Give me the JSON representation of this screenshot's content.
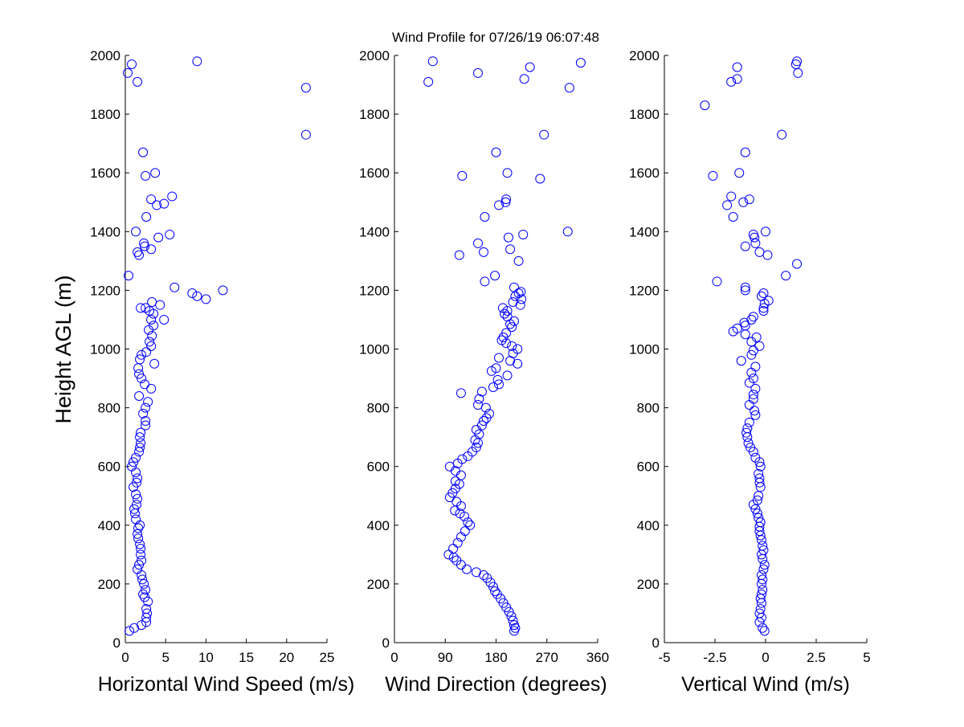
{
  "figure": {
    "title": "Wind Profile for  07/26/19 06:07:48",
    "ylabel": "Height AGL (m)",
    "marker_color": "#0000ff"
  },
  "chart_data": [
    {
      "type": "scatter",
      "xlabel": "Horizontal Wind Speed (m/s)",
      "ylabel": "Height AGL (m)",
      "xlim": [
        0,
        25
      ],
      "ylim": [
        0,
        2000
      ],
      "xticks": [
        "0",
        "5",
        "10",
        "15",
        "20",
        "25"
      ],
      "yticks": [
        "0",
        "200",
        "400",
        "600",
        "800",
        "1000",
        "1200",
        "1400",
        "1600",
        "1800",
        "2000"
      ],
      "points": [
        [
          0.5,
          40
        ],
        [
          1.1,
          50
        ],
        [
          2.0,
          60
        ],
        [
          2.6,
          70
        ],
        [
          2.6,
          85
        ],
        [
          2.7,
          100
        ],
        [
          2.6,
          115
        ],
        [
          2.8,
          140
        ],
        [
          2.4,
          155
        ],
        [
          2.2,
          165
        ],
        [
          2.5,
          180
        ],
        [
          2.3,
          200
        ],
        [
          2.1,
          215
        ],
        [
          2.0,
          230
        ],
        [
          1.5,
          250
        ],
        [
          1.7,
          265
        ],
        [
          2.0,
          280
        ],
        [
          1.9,
          300
        ],
        [
          1.9,
          320
        ],
        [
          1.8,
          335
        ],
        [
          1.6,
          355
        ],
        [
          1.5,
          370
        ],
        [
          1.6,
          390
        ],
        [
          1.8,
          400
        ],
        [
          1.3,
          420
        ],
        [
          1.2,
          440
        ],
        [
          1.1,
          455
        ],
        [
          1.4,
          470
        ],
        [
          1.5,
          490
        ],
        [
          1.3,
          505
        ],
        [
          1.0,
          530
        ],
        [
          1.4,
          545
        ],
        [
          1.5,
          560
        ],
        [
          1.3,
          580
        ],
        [
          0.8,
          600
        ],
        [
          1.0,
          615
        ],
        [
          1.3,
          630
        ],
        [
          1.7,
          650
        ],
        [
          1.8,
          665
        ],
        [
          1.9,
          680
        ],
        [
          1.8,
          700
        ],
        [
          1.9,
          715
        ],
        [
          2.5,
          740
        ],
        [
          2.5,
          755
        ],
        [
          2.2,
          780
        ],
        [
          2.5,
          800
        ],
        [
          2.8,
          820
        ],
        [
          1.7,
          840
        ],
        [
          3.2,
          865
        ],
        [
          2.4,
          880
        ],
        [
          2.0,
          900
        ],
        [
          1.7,
          915
        ],
        [
          1.6,
          935
        ],
        [
          3.6,
          950
        ],
        [
          1.8,
          965
        ],
        [
          2.0,
          980
        ],
        [
          2.6,
          990
        ],
        [
          3.2,
          1010
        ],
        [
          3.0,
          1025
        ],
        [
          3.3,
          1045
        ],
        [
          2.9,
          1065
        ],
        [
          3.5,
          1080
        ],
        [
          3.2,
          1100
        ],
        [
          4.8,
          1100
        ],
        [
          3.5,
          1120
        ],
        [
          3.0,
          1130
        ],
        [
          2.5,
          1140
        ],
        [
          1.9,
          1140
        ],
        [
          4.3,
          1150
        ],
        [
          3.3,
          1160
        ],
        [
          8.3,
          1190
        ],
        [
          8.9,
          1180
        ],
        [
          10.0,
          1170
        ],
        [
          12.1,
          1200
        ],
        [
          6.1,
          1210
        ],
        [
          0.4,
          1250
        ],
        [
          1.7,
          1320
        ],
        [
          1.5,
          1330
        ],
        [
          3.2,
          1340
        ],
        [
          2.4,
          1350
        ],
        [
          2.3,
          1360
        ],
        [
          4.1,
          1380
        ],
        [
          5.5,
          1390
        ],
        [
          1.3,
          1400
        ],
        [
          2.6,
          1450
        ],
        [
          3.9,
          1490
        ],
        [
          4.8,
          1495
        ],
        [
          3.2,
          1510
        ],
        [
          5.8,
          1520
        ],
        [
          2.5,
          1590
        ],
        [
          3.7,
          1600
        ],
        [
          2.2,
          1670
        ],
        [
          22.4,
          1730
        ],
        [
          1.5,
          1910
        ],
        [
          22.4,
          1890
        ],
        [
          0.3,
          1940
        ],
        [
          0.8,
          1970
        ],
        [
          8.9,
          1980
        ]
      ]
    },
    {
      "type": "scatter",
      "xlabel": "Wind Direction (degrees)",
      "ylabel": "",
      "xlim": [
        0,
        360
      ],
      "ylim": [
        0,
        2000
      ],
      "xticks": [
        "0",
        "90",
        "180",
        "270",
        "360"
      ],
      "yticks": [
        "0",
        "200",
        "400",
        "600",
        "800",
        "1000",
        "1200",
        "1400",
        "1600",
        "1800",
        "2000"
      ],
      "points": [
        [
          212,
          40
        ],
        [
          214,
          50
        ],
        [
          212,
          60
        ],
        [
          210,
          75
        ],
        [
          207,
          90
        ],
        [
          203,
          105
        ],
        [
          198,
          120
        ],
        [
          193,
          135
        ],
        [
          188,
          150
        ],
        [
          182,
          165
        ],
        [
          178,
          175
        ],
        [
          175,
          190
        ],
        [
          170,
          205
        ],
        [
          164,
          220
        ],
        [
          158,
          230
        ],
        [
          145,
          240
        ],
        [
          128,
          250
        ],
        [
          118,
          265
        ],
        [
          110,
          280
        ],
        [
          105,
          290
        ],
        [
          96,
          300
        ],
        [
          104,
          320
        ],
        [
          112,
          340
        ],
        [
          118,
          360
        ],
        [
          125,
          380
        ],
        [
          134,
          400
        ],
        [
          130,
          410
        ],
        [
          124,
          430
        ],
        [
          116,
          440
        ],
        [
          107,
          450
        ],
        [
          118,
          465
        ],
        [
          110,
          480
        ],
        [
          98,
          495
        ],
        [
          103,
          510
        ],
        [
          108,
          525
        ],
        [
          115,
          540
        ],
        [
          108,
          550
        ],
        [
          118,
          570
        ],
        [
          108,
          585
        ],
        [
          98,
          600
        ],
        [
          112,
          610
        ],
        [
          120,
          625
        ],
        [
          130,
          635
        ],
        [
          138,
          650
        ],
        [
          145,
          665
        ],
        [
          148,
          680
        ],
        [
          143,
          690
        ],
        [
          150,
          710
        ],
        [
          145,
          725
        ],
        [
          155,
          740
        ],
        [
          158,
          755
        ],
        [
          163,
          765
        ],
        [
          168,
          780
        ],
        [
          162,
          800
        ],
        [
          148,
          810
        ],
        [
          150,
          830
        ],
        [
          155,
          855
        ],
        [
          118,
          850
        ],
        [
          175,
          870
        ],
        [
          185,
          880
        ],
        [
          183,
          895
        ],
        [
          200,
          910
        ],
        [
          172,
          925
        ],
        [
          180,
          935
        ],
        [
          218,
          950
        ],
        [
          205,
          960
        ],
        [
          185,
          970
        ],
        [
          210,
          985
        ],
        [
          218,
          1000
        ],
        [
          208,
          1010
        ],
        [
          198,
          1020
        ],
        [
          190,
          1030
        ],
        [
          193,
          1040
        ],
        [
          198,
          1055
        ],
        [
          208,
          1075
        ],
        [
          205,
          1085
        ],
        [
          212,
          1095
        ],
        [
          200,
          1110
        ],
        [
          195,
          1120
        ],
        [
          200,
          1130
        ],
        [
          192,
          1140
        ],
        [
          223,
          1150
        ],
        [
          210,
          1160
        ],
        [
          225,
          1170
        ],
        [
          214,
          1180
        ],
        [
          220,
          1190
        ],
        [
          224,
          1195
        ],
        [
          212,
          1210
        ],
        [
          160,
          1230
        ],
        [
          178,
          1250
        ],
        [
          220,
          1300
        ],
        [
          115,
          1320
        ],
        [
          158,
          1330
        ],
        [
          205,
          1340
        ],
        [
          148,
          1360
        ],
        [
          202,
          1380
        ],
        [
          228,
          1390
        ],
        [
          307,
          1400
        ],
        [
          160,
          1450
        ],
        [
          185,
          1490
        ],
        [
          197,
          1500
        ],
        [
          198,
          1510
        ],
        [
          258,
          1580
        ],
        [
          200,
          1600
        ],
        [
          120,
          1590
        ],
        [
          180,
          1670
        ],
        [
          265,
          1730
        ],
        [
          60,
          1910
        ],
        [
          230,
          1920
        ],
        [
          310,
          1890
        ],
        [
          148,
          1940
        ],
        [
          240,
          1960
        ],
        [
          68,
          1980
        ],
        [
          330,
          1975
        ]
      ]
    },
    {
      "type": "scatter",
      "xlabel": "Vertical Wind (m/s)",
      "ylabel": "",
      "xlim": [
        -5,
        5
      ],
      "ylim": [
        0,
        2000
      ],
      "xticks": [
        "-5",
        "-2.5",
        "0",
        "2.5",
        "5"
      ],
      "yticks": [
        "0",
        "200",
        "400",
        "600",
        "800",
        "1000",
        "1200",
        "1400",
        "1600",
        "1800",
        "2000"
      ],
      "points": [
        [
          -0.05,
          40
        ],
        [
          -0.15,
          50
        ],
        [
          -0.3,
          70
        ],
        [
          -0.2,
          85
        ],
        [
          -0.3,
          100
        ],
        [
          -0.25,
          115
        ],
        [
          -0.2,
          135
        ],
        [
          -0.25,
          150
        ],
        [
          -0.2,
          165
        ],
        [
          -0.15,
          180
        ],
        [
          -0.2,
          200
        ],
        [
          -0.15,
          215
        ],
        [
          -0.2,
          230
        ],
        [
          -0.1,
          250
        ],
        [
          -0.05,
          265
        ],
        [
          -0.15,
          285
        ],
        [
          -0.2,
          300
        ],
        [
          -0.1,
          315
        ],
        [
          -0.15,
          330
        ],
        [
          -0.2,
          350
        ],
        [
          -0.25,
          365
        ],
        [
          -0.3,
          380
        ],
        [
          -0.3,
          395
        ],
        [
          -0.25,
          410
        ],
        [
          -0.35,
          425
        ],
        [
          -0.4,
          440
        ],
        [
          -0.5,
          455
        ],
        [
          -0.6,
          470
        ],
        [
          -0.4,
          485
        ],
        [
          -0.35,
          500
        ],
        [
          -0.25,
          530
        ],
        [
          -0.3,
          545
        ],
        [
          -0.3,
          560
        ],
        [
          -0.35,
          575
        ],
        [
          -0.25,
          600
        ],
        [
          -0.3,
          615
        ],
        [
          -0.5,
          630
        ],
        [
          -0.6,
          650
        ],
        [
          -0.75,
          665
        ],
        [
          -0.85,
          680
        ],
        [
          -0.9,
          700
        ],
        [
          -0.95,
          715
        ],
        [
          -0.9,
          730
        ],
        [
          -0.8,
          750
        ],
        [
          -0.5,
          775
        ],
        [
          -0.55,
          790
        ],
        [
          -0.8,
          810
        ],
        [
          -0.6,
          830
        ],
        [
          -0.6,
          845
        ],
        [
          -0.5,
          865
        ],
        [
          -0.8,
          885
        ],
        [
          -0.6,
          900
        ],
        [
          -0.7,
          920
        ],
        [
          -0.5,
          940
        ],
        [
          -1.2,
          960
        ],
        [
          -0.7,
          980
        ],
        [
          -0.6,
          995
        ],
        [
          -0.3,
          1010
        ],
        [
          -0.7,
          1025
        ],
        [
          -0.45,
          1040
        ],
        [
          -1.0,
          1050
        ],
        [
          -1.6,
          1060
        ],
        [
          -1.4,
          1070
        ],
        [
          -1.0,
          1080
        ],
        [
          -1.05,
          1090
        ],
        [
          -0.7,
          1100
        ],
        [
          -0.6,
          1110
        ],
        [
          -0.1,
          1130
        ],
        [
          -0.1,
          1140
        ],
        [
          -0.05,
          1155
        ],
        [
          0.15,
          1165
        ],
        [
          -0.2,
          1180
        ],
        [
          -0.1,
          1190
        ],
        [
          -1.0,
          1200
        ],
        [
          -1.0,
          1210
        ],
        [
          -2.4,
          1230
        ],
        [
          1.0,
          1250
        ],
        [
          1.55,
          1290
        ],
        [
          0.1,
          1320
        ],
        [
          -0.3,
          1330
        ],
        [
          -1.0,
          1350
        ],
        [
          -0.5,
          1360
        ],
        [
          -0.55,
          1380
        ],
        [
          -0.6,
          1390
        ],
        [
          0.0,
          1400
        ],
        [
          -1.6,
          1450
        ],
        [
          -1.9,
          1490
        ],
        [
          -1.1,
          1500
        ],
        [
          -1.7,
          1520
        ],
        [
          -0.8,
          1510
        ],
        [
          -1.3,
          1600
        ],
        [
          -2.6,
          1590
        ],
        [
          -1.0,
          1670
        ],
        [
          0.8,
          1730
        ],
        [
          -3.0,
          1830
        ],
        [
          -1.7,
          1910
        ],
        [
          -1.4,
          1920
        ],
        [
          1.6,
          1940
        ],
        [
          -1.4,
          1960
        ],
        [
          1.5,
          1970
        ],
        [
          1.55,
          1980
        ]
      ]
    }
  ]
}
